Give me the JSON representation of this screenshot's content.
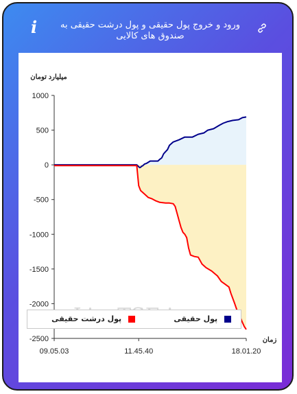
{
  "header": {
    "title": "ورود و خروج پول حقیقی و پول درشت حقیقی به صندوق های کالایی",
    "info_icon": "i"
  },
  "colors": {
    "series_real": "#00008b",
    "series_big_real": "#ff0000",
    "fill_positive": "#e8f3fb",
    "fill_negative": "#fdf1c4"
  },
  "watermark": "LiveTSE.ir",
  "chart_data": {
    "type": "line",
    "ylabel": "میلیارد تومان",
    "xlabel": "زمان",
    "ylim": [
      -2500,
      1000
    ],
    "yticks": [
      "1000",
      "500",
      "0",
      "-500",
      "-1000",
      "-1500",
      "-2000",
      "-2500"
    ],
    "xticks": [
      "09.05.03",
      "11.45.40",
      "18.01.20"
    ],
    "legend_position": "bottom",
    "series": [
      {
        "name": "پول حقیقی",
        "color": "#00008b",
        "points": [
          [
            0,
            0
          ],
          [
            0.2,
            0
          ],
          [
            0.4,
            0
          ],
          [
            0.43,
            0
          ],
          [
            0.445,
            -40
          ],
          [
            0.45,
            -35
          ],
          [
            0.455,
            -20
          ],
          [
            0.46,
            -15
          ],
          [
            0.47,
            10
          ],
          [
            0.48,
            20
          ],
          [
            0.5,
            55
          ],
          [
            0.52,
            55
          ],
          [
            0.54,
            55
          ],
          [
            0.55,
            80
          ],
          [
            0.56,
            100
          ],
          [
            0.57,
            160
          ],
          [
            0.58,
            190
          ],
          [
            0.59,
            220
          ],
          [
            0.6,
            280
          ],
          [
            0.62,
            330
          ],
          [
            0.65,
            360
          ],
          [
            0.68,
            400
          ],
          [
            0.72,
            400
          ],
          [
            0.75,
            440
          ],
          [
            0.78,
            460
          ],
          [
            0.8,
            500
          ],
          [
            0.83,
            520
          ],
          [
            0.86,
            570
          ],
          [
            0.88,
            600
          ],
          [
            0.9,
            620
          ],
          [
            0.93,
            640
          ],
          [
            0.96,
            650
          ],
          [
            0.98,
            680
          ],
          [
            1.0,
            690
          ]
        ]
      },
      {
        "name": "پول درشت حقیقی",
        "color": "#ff0000",
        "points": [
          [
            0,
            -10
          ],
          [
            0.2,
            -10
          ],
          [
            0.4,
            -10
          ],
          [
            0.43,
            -10
          ],
          [
            0.44,
            -300
          ],
          [
            0.45,
            -370
          ],
          [
            0.47,
            -420
          ],
          [
            0.49,
            -470
          ],
          [
            0.51,
            -490
          ],
          [
            0.53,
            -520
          ],
          [
            0.55,
            -540
          ],
          [
            0.58,
            -550
          ],
          [
            0.6,
            -550
          ],
          [
            0.62,
            -560
          ],
          [
            0.63,
            -600
          ],
          [
            0.64,
            -700
          ],
          [
            0.65,
            -800
          ],
          [
            0.66,
            -900
          ],
          [
            0.67,
            -970
          ],
          [
            0.68,
            -1000
          ],
          [
            0.69,
            -1050
          ],
          [
            0.7,
            -1200
          ],
          [
            0.71,
            -1300
          ],
          [
            0.73,
            -1320
          ],
          [
            0.75,
            -1330
          ],
          [
            0.77,
            -1430
          ],
          [
            0.79,
            -1480
          ],
          [
            0.82,
            -1530
          ],
          [
            0.85,
            -1600
          ],
          [
            0.87,
            -1680
          ],
          [
            0.89,
            -1720
          ],
          [
            0.91,
            -1760
          ],
          [
            0.92,
            -1850
          ],
          [
            0.94,
            -2000
          ],
          [
            0.95,
            -2080
          ],
          [
            0.96,
            -2150
          ],
          [
            0.97,
            -2200
          ],
          [
            0.98,
            -2270
          ],
          [
            0.99,
            -2330
          ],
          [
            1.0,
            -2370
          ]
        ]
      }
    ]
  }
}
